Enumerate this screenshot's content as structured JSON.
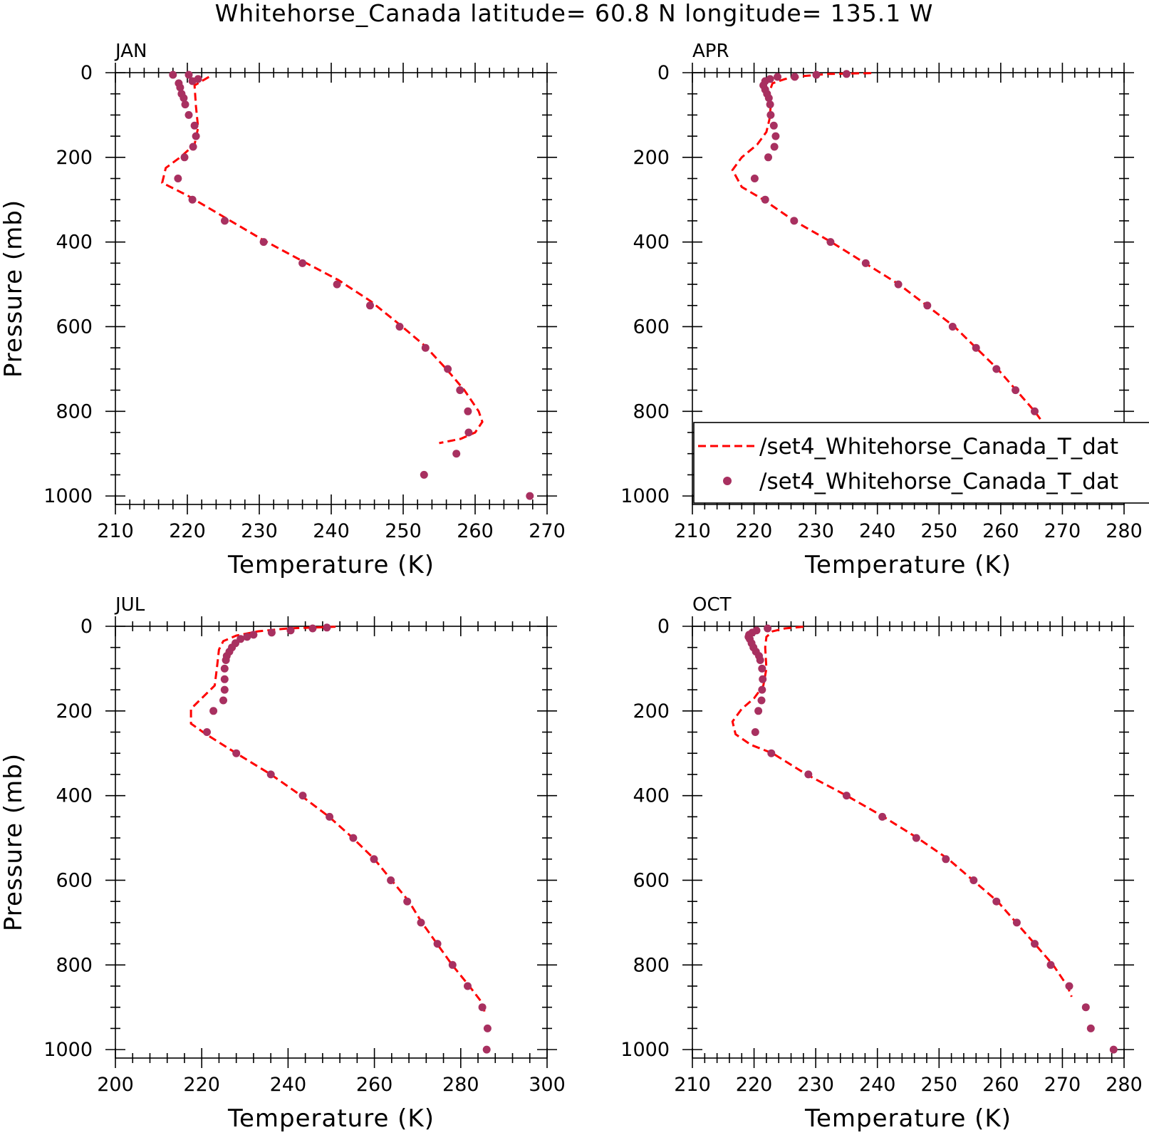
{
  "title": "Whitehorse_Canada  latitude= 60.8 N longitude= 135.1 W",
  "colors": {
    "model_line": "#ff0000",
    "obs_marker": "#a83060",
    "axes": "#000000"
  },
  "legend": {
    "placement": "APR panel, lower middle",
    "entries": [
      {
        "marker": "dashed-line",
        "label": "/set4_Whitehorse_Canada_T_dat"
      },
      {
        "marker": "dot",
        "label": "/set4_Whitehorse_Canada_T_dat"
      }
    ]
  },
  "chart_data": [
    {
      "type": "line",
      "panel": "JAN",
      "xlabel": "Temperature (K)",
      "ylabel": "Pressure (mb)",
      "xlim": [
        210,
        270
      ],
      "ylim": [
        0,
        1020
      ],
      "y_inverted": true,
      "xticks": [
        210,
        220,
        230,
        240,
        250,
        260,
        270
      ],
      "yticks": [
        0,
        200,
        400,
        600,
        800,
        1000
      ],
      "series": [
        {
          "name": "/set4_Whitehorse_Canada_T_dat",
          "style": "dashed",
          "points": [
            [
              223,
              10
            ],
            [
              221,
              30
            ],
            [
              221.2,
              80
            ],
            [
              221.5,
              130
            ],
            [
              221,
              170
            ],
            [
              219,
              200
            ],
            [
              217,
              225
            ],
            [
              216.5,
              260
            ],
            [
              220,
              290
            ],
            [
              225,
              340
            ],
            [
              230.5,
              395
            ],
            [
              236,
              445
            ],
            [
              241,
              490
            ],
            [
              245.5,
              540
            ],
            [
              249.5,
              595
            ],
            [
              253,
              645
            ],
            [
              256,
              700
            ],
            [
              258.5,
              750
            ],
            [
              260.5,
              800
            ],
            [
              261,
              825
            ],
            [
              260,
              850
            ],
            [
              258,
              865
            ],
            [
              255,
              875
            ]
          ]
        },
        {
          "name": "/set4_Whitehorse_Canada_T_dat",
          "style": "dots",
          "points": [
            [
              218,
              5
            ],
            [
              220.2,
              5
            ],
            [
              221.5,
              15
            ],
            [
              220.7,
              20
            ],
            [
              218.8,
              25
            ],
            [
              219.0,
              35
            ],
            [
              219.2,
              50
            ],
            [
              219.5,
              60
            ],
            [
              219.7,
              75
            ],
            [
              220.2,
              100
            ],
            [
              221.0,
              125
            ],
            [
              221.2,
              150
            ],
            [
              220.8,
              175
            ],
            [
              219.6,
              200
            ],
            [
              218.7,
              250
            ],
            [
              220.7,
              300
            ],
            [
              225.2,
              350
            ],
            [
              230.6,
              400
            ],
            [
              236.0,
              450
            ],
            [
              240.8,
              500
            ],
            [
              245.4,
              550
            ],
            [
              249.5,
              600
            ],
            [
              253.1,
              650
            ],
            [
              256.2,
              700
            ],
            [
              257.9,
              750
            ],
            [
              259,
              800
            ],
            [
              259.1,
              850
            ],
            [
              257.4,
              900
            ],
            [
              252.9,
              950
            ],
            [
              267.6,
              1000
            ]
          ]
        }
      ]
    },
    {
      "type": "line",
      "panel": "APR",
      "xlabel": "Temperature (K)",
      "ylabel": "",
      "xlim": [
        210,
        280
      ],
      "ylim": [
        0,
        1020
      ],
      "y_inverted": true,
      "xticks": [
        210,
        220,
        230,
        240,
        250,
        260,
        270,
        280
      ],
      "yticks": [
        0,
        200,
        400,
        600,
        800,
        1000
      ],
      "series": [
        {
          "name": "/set4_Whitehorse_Canada_T_dat",
          "style": "dashed",
          "points": [
            [
              239,
              1
            ],
            [
              232,
              3
            ],
            [
              228,
              8
            ],
            [
              225,
              15
            ],
            [
              223,
              25
            ],
            [
              222.5,
              45
            ],
            [
              222.7,
              80
            ],
            [
              222.5,
              110
            ],
            [
              222,
              140
            ],
            [
              220.5,
              170
            ],
            [
              218,
              200
            ],
            [
              216.5,
              230
            ],
            [
              218,
              270
            ],
            [
              221.5,
              300
            ],
            [
              226.5,
              350
            ],
            [
              232.5,
              400
            ],
            [
              238,
              450
            ],
            [
              243.5,
              500
            ],
            [
              248,
              550
            ],
            [
              252.5,
              600
            ],
            [
              256,
              650
            ],
            [
              259.5,
              700
            ],
            [
              262.5,
              750
            ],
            [
              265.5,
              800
            ],
            [
              268,
              850
            ],
            [
              269.5,
              880
            ]
          ]
        },
        {
          "name": "/set4_Whitehorse_Canada_T_dat",
          "style": "dots",
          "points": [
            [
              235.0,
              3
            ],
            [
              230.1,
              5
            ],
            [
              226.6,
              10
            ],
            [
              223.8,
              10
            ],
            [
              222.6,
              15
            ],
            [
              221.8,
              20
            ],
            [
              221.5,
              30
            ],
            [
              221.8,
              40
            ],
            [
              222.1,
              50
            ],
            [
              222.4,
              60
            ],
            [
              222.6,
              75
            ],
            [
              222.7,
              100
            ],
            [
              223.2,
              125
            ],
            [
              223.5,
              150
            ],
            [
              223.3,
              175
            ],
            [
              222.3,
              200
            ],
            [
              220.1,
              250
            ],
            [
              221.8,
              300
            ],
            [
              226.5,
              350
            ],
            [
              232.4,
              400
            ],
            [
              238.1,
              450
            ],
            [
              243.4,
              500
            ],
            [
              248.1,
              550
            ],
            [
              252.2,
              600
            ],
            [
              256.0,
              650
            ],
            [
              259.3,
              700
            ],
            [
              262.4,
              750
            ],
            [
              265.5,
              800
            ],
            [
              269.2,
              850
            ],
            [
              272.7,
              900
            ],
            [
              272.6,
              950
            ],
            [
              276.1,
              1000
            ]
          ]
        }
      ]
    },
    {
      "type": "line",
      "panel": "JUL",
      "xlabel": "Temperature (K)",
      "ylabel": "Pressure (mb)",
      "xlim": [
        200,
        300
      ],
      "ylim": [
        0,
        1020
      ],
      "y_inverted": true,
      "xticks": [
        200,
        220,
        240,
        260,
        280,
        300
      ],
      "yticks": [
        0,
        200,
        400,
        600,
        800,
        1000
      ],
      "series": [
        {
          "name": "/set4_Whitehorse_Canada_T_dat",
          "style": "dashed",
          "points": [
            [
              251,
              1
            ],
            [
              240,
              5
            ],
            [
              233,
              12
            ],
            [
              228,
              22
            ],
            [
              225,
              35
            ],
            [
              224,
              55
            ],
            [
              223.5,
              100
            ],
            [
              223,
              140
            ],
            [
              220,
              170
            ],
            [
              217.5,
              195
            ],
            [
              217.5,
              230
            ],
            [
              221,
              255
            ],
            [
              228,
              300
            ],
            [
              236,
              350
            ],
            [
              243,
              400
            ],
            [
              249.5,
              450
            ],
            [
              255,
              500
            ],
            [
              260,
              550
            ],
            [
              264,
              600
            ],
            [
              268,
              650
            ],
            [
              271,
              700
            ],
            [
              274.5,
              750
            ],
            [
              278,
              800
            ],
            [
              282,
              850
            ],
            [
              285,
              890
            ],
            [
              285.5,
              910
            ]
          ]
        },
        {
          "name": "/set4_Whitehorse_Canada_T_dat",
          "style": "dots",
          "points": [
            [
              249.0,
              3
            ],
            [
              245.7,
              5
            ],
            [
              240.6,
              10
            ],
            [
              236.2,
              15
            ],
            [
              232.0,
              20
            ],
            [
              230.5,
              25
            ],
            [
              229.0,
              30
            ],
            [
              227.8,
              40
            ],
            [
              227.0,
              50
            ],
            [
              226.4,
              60
            ],
            [
              225.8,
              70
            ],
            [
              225.6,
              80
            ],
            [
              225.3,
              100
            ],
            [
              225.3,
              125
            ],
            [
              225.3,
              150
            ],
            [
              225.0,
              175
            ],
            [
              222.7,
              200
            ],
            [
              221.2,
              250
            ],
            [
              228.0,
              300
            ],
            [
              236.0,
              350
            ],
            [
              243.4,
              400
            ],
            [
              249.6,
              450
            ],
            [
              255.1,
              500
            ],
            [
              259.9,
              550
            ],
            [
              263.8,
              600
            ],
            [
              267.6,
              650
            ],
            [
              270.8,
              700
            ],
            [
              274.6,
              750
            ],
            [
              278.1,
              800
            ],
            [
              281.6,
              850
            ],
            [
              285.0,
              900
            ],
            [
              286.2,
              950
            ],
            [
              286.0,
              1000
            ]
          ]
        }
      ]
    },
    {
      "type": "line",
      "panel": "OCT",
      "xlabel": "Temperature (K)",
      "ylabel": "",
      "xlim": [
        210,
        280
      ],
      "ylim": [
        0,
        1020
      ],
      "y_inverted": true,
      "xticks": [
        210,
        220,
        230,
        240,
        250,
        260,
        270,
        280
      ],
      "yticks": [
        0,
        200,
        400,
        600,
        800,
        1000
      ],
      "series": [
        {
          "name": "/set4_Whitehorse_Canada_T_dat",
          "style": "dashed",
          "points": [
            [
              228,
              1
            ],
            [
              225,
              5
            ],
            [
              223,
              12
            ],
            [
              222,
              25
            ],
            [
              221.8,
              50
            ],
            [
              222,
              100
            ],
            [
              221.5,
              140
            ],
            [
              220,
              170
            ],
            [
              218,
              195
            ],
            [
              216.5,
              225
            ],
            [
              217,
              255
            ],
            [
              219.5,
              280
            ],
            [
              223,
              300
            ],
            [
              228.5,
              350
            ],
            [
              235,
              400
            ],
            [
              241,
              450
            ],
            [
              246.5,
              500
            ],
            [
              251.5,
              550
            ],
            [
              255.5,
              600
            ],
            [
              259.5,
              650
            ],
            [
              262.5,
              700
            ],
            [
              265.5,
              750
            ],
            [
              268.5,
              800
            ],
            [
              270.8,
              850
            ],
            [
              271.5,
              875
            ]
          ]
        },
        {
          "name": "/set4_Whitehorse_Canada_T_dat",
          "style": "dots",
          "points": [
            [
              222.2,
              5
            ],
            [
              220.4,
              10
            ],
            [
              219.7,
              15
            ],
            [
              219.2,
              20
            ],
            [
              219.1,
              25
            ],
            [
              219.3,
              30
            ],
            [
              219.6,
              40
            ],
            [
              219.9,
              50
            ],
            [
              220.3,
              60
            ],
            [
              220.8,
              70
            ],
            [
              221.0,
              80
            ],
            [
              221.3,
              100
            ],
            [
              221.4,
              125
            ],
            [
              221.3,
              150
            ],
            [
              221.2,
              175
            ],
            [
              220.7,
              200
            ],
            [
              220.2,
              250
            ],
            [
              222.8,
              300
            ],
            [
              228.8,
              350
            ],
            [
              235.0,
              400
            ],
            [
              240.8,
              450
            ],
            [
              246.3,
              500
            ],
            [
              251.1,
              550
            ],
            [
              255.6,
              600
            ],
            [
              259.3,
              650
            ],
            [
              262.6,
              700
            ],
            [
              265.5,
              750
            ],
            [
              268.1,
              800
            ],
            [
              271.1,
              850
            ],
            [
              273.8,
              900
            ],
            [
              274.6,
              950
            ],
            [
              278.3,
              1000
            ]
          ]
        }
      ]
    }
  ]
}
